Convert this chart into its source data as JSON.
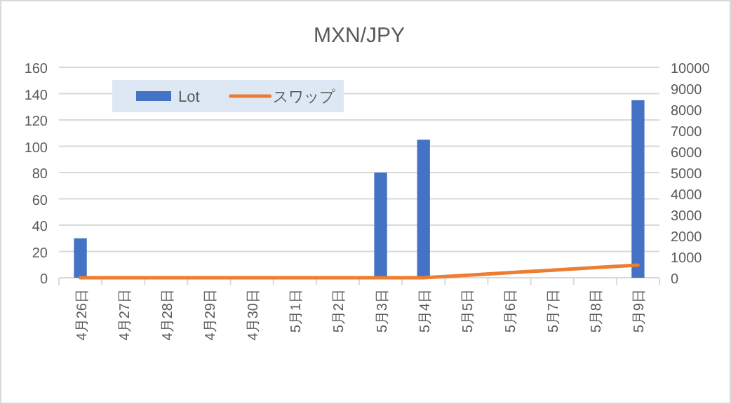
{
  "chart_data": {
    "type": "bar",
    "title": "MXN/JPY",
    "categories": [
      "4月26日",
      "4月27日",
      "4月28日",
      "4月29日",
      "4月30日",
      "5月1日",
      "5月2日",
      "5月3日",
      "5月4日",
      "5月5日",
      "5月6日",
      "5月7日",
      "5月8日",
      "5月9日"
    ],
    "series": [
      {
        "name": "Lot",
        "color": "#4472c4",
        "values": [
          30,
          0,
          0,
          0,
          0,
          0,
          0,
          80,
          105,
          0,
          0,
          0,
          0,
          135
        ]
      },
      {
        "name": "スワップ",
        "type": "line",
        "axis": "y2",
        "color": "#ed7d31",
        "values": [
          0,
          0,
          0,
          0,
          0,
          0,
          0,
          0,
          0,
          120,
          240,
          360,
          480,
          600
        ]
      }
    ],
    "ylim": [
      0,
      160
    ],
    "yticks": [
      0,
      20,
      40,
      60,
      80,
      100,
      120,
      140,
      160
    ],
    "y2lim": [
      0,
      10000
    ],
    "y2ticks": [
      0,
      1000,
      2000,
      3000,
      4000,
      5000,
      6000,
      7000,
      8000,
      9000,
      10000
    ],
    "grid": "y",
    "legend": "top left",
    "marker": "none",
    "line_style": "solid"
  }
}
